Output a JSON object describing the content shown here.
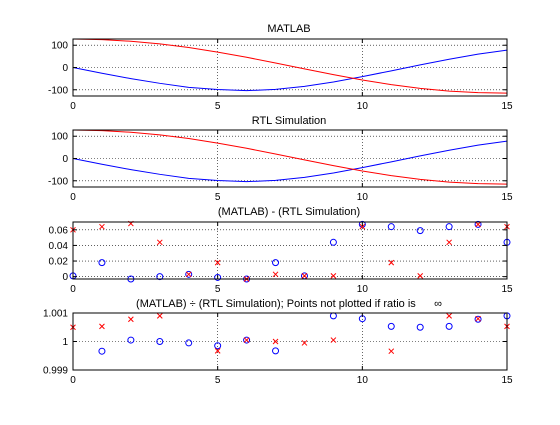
{
  "figure": {
    "background": "#ffffff",
    "axis_color": "#000000",
    "grid_color": "#000000"
  },
  "chart_data": [
    {
      "type": "line",
      "title": "MATLAB",
      "xlabel": "",
      "ylabel": "",
      "xlim": [
        0,
        15
      ],
      "ylim": [
        -128,
        128
      ],
      "xticks": [
        0,
        5,
        10,
        15
      ],
      "xtick_labels": [
        "0",
        "5",
        "10",
        "15"
      ],
      "yticks": [
        -100,
        0,
        100
      ],
      "ytick_labels": [
        "-100",
        "0",
        "100"
      ],
      "grid": true,
      "grid_style": "dotted",
      "legend": "none",
      "series": [
        {
          "color": "#0000ff",
          "x": [
            0,
            1,
            2,
            3,
            4,
            5,
            6,
            7,
            8,
            9,
            10,
            11,
            12,
            13,
            14,
            15
          ],
          "y": [
            0,
            -26,
            -50,
            -71,
            -89,
            -99,
            -104,
            -98,
            -85,
            -65,
            -41,
            -15,
            12,
            37,
            60,
            78
          ]
        },
        {
          "color": "#ff0000",
          "x": [
            0,
            1,
            2,
            3,
            4,
            5,
            6,
            7,
            8,
            9,
            10,
            11,
            12,
            13,
            14,
            15
          ],
          "y": [
            128,
            125,
            118,
            106,
            90,
            69,
            46,
            20,
            -6,
            -32,
            -56,
            -77,
            -94,
            -106,
            -113,
            -115
          ]
        }
      ]
    },
    {
      "type": "line",
      "title": "RTL Simulation",
      "xlabel": "",
      "ylabel": "",
      "xlim": [
        0,
        15
      ],
      "ylim": [
        -128,
        128
      ],
      "xticks": [
        0,
        5,
        10,
        15
      ],
      "xtick_labels": [
        "0",
        "5",
        "10",
        "15"
      ],
      "yticks": [
        -100,
        0,
        100
      ],
      "ytick_labels": [
        "-100",
        "0",
        "100"
      ],
      "grid": true,
      "grid_style": "dotted",
      "legend": "none",
      "series": [
        {
          "color": "#0000ff",
          "x": [
            0,
            1,
            2,
            3,
            4,
            5,
            6,
            7,
            8,
            9,
            10,
            11,
            12,
            13,
            14,
            15
          ],
          "y": [
            0,
            -26,
            -50,
            -71,
            -89,
            -99,
            -104,
            -98,
            -85,
            -65,
            -41,
            -15,
            12,
            37,
            60,
            78
          ]
        },
        {
          "color": "#ff0000",
          "x": [
            0,
            1,
            2,
            3,
            4,
            5,
            6,
            7,
            8,
            9,
            10,
            11,
            12,
            13,
            14,
            15
          ],
          "y": [
            128,
            125,
            118,
            106,
            90,
            69,
            46,
            20,
            -6,
            -32,
            -56,
            -77,
            -94,
            -106,
            -113,
            -115
          ]
        }
      ]
    },
    {
      "type": "scatter",
      "title": "(MATLAB) - (RTL Simulation)",
      "xlabel": "",
      "ylabel": "",
      "xlim": [
        0,
        15
      ],
      "ylim": [
        -0.003,
        0.07
      ],
      "xticks": [
        0,
        5,
        10,
        15
      ],
      "xtick_labels": [
        "0",
        "5",
        "10",
        "15"
      ],
      "yticks": [
        0,
        0.02,
        0.04,
        0.06
      ],
      "ytick_labels": [
        "0",
        "0.02",
        "0.04",
        "0.06"
      ],
      "grid": true,
      "grid_style": "dotted",
      "legend": "none",
      "series": [
        {
          "color": "#0000ff",
          "marker": "o",
          "x": [
            0,
            1,
            2,
            3,
            4,
            5,
            6,
            7,
            8,
            9,
            10,
            11,
            12,
            13,
            14,
            15
          ],
          "y": [
            0.001,
            0.018,
            -0.003,
            0.0,
            0.003,
            -0.001,
            -0.003,
            0.018,
            0.001,
            0.044,
            0.067,
            0.064,
            0.059,
            0.064,
            0.067,
            0.044
          ]
        },
        {
          "color": "#ff0000",
          "marker": "x",
          "x": [
            0,
            1,
            2,
            3,
            4,
            5,
            6,
            7,
            8,
            9,
            10,
            11,
            12,
            13,
            14,
            15
          ],
          "y": [
            0.06,
            0.064,
            0.068,
            0.044,
            0.003,
            0.018,
            -0.003,
            0.003,
            0.001,
            0.001,
            0.064,
            0.018,
            0.001,
            0.044,
            0.067,
            0.064
          ]
        }
      ]
    },
    {
      "type": "scatter",
      "title": "(MATLAB) ÷ (RTL Simulation); Points not plotted if ratio is      ∞",
      "xlabel": "",
      "ylabel": "",
      "xlim": [
        0,
        15
      ],
      "ylim": [
        0.999,
        1.001
      ],
      "xticks": [
        0,
        5,
        10,
        15
      ],
      "xtick_labels": [
        "0",
        "5",
        "10",
        "15"
      ],
      "yticks": [
        0.999,
        1,
        1.001
      ],
      "ytick_labels": [
        "0.999",
        "1",
        "1.001"
      ],
      "grid": true,
      "grid_style": "dotted",
      "legend": "none",
      "series": [
        {
          "color": "#0000ff",
          "marker": "o",
          "x": [
            1,
            2,
            3,
            4,
            5,
            6,
            7,
            9,
            10,
            11,
            12,
            13,
            14,
            15
          ],
          "y": [
            0.99966,
            1.00005,
            1.0,
            0.99995,
            0.99985,
            1.00005,
            0.99967,
            1.0009,
            1.0008,
            1.00053,
            1.0005,
            1.00053,
            1.00078,
            1.0009
          ]
        },
        {
          "color": "#ff0000",
          "marker": "x",
          "x": [
            0,
            1,
            2,
            3,
            5,
            6,
            7,
            8,
            9,
            11,
            13,
            14,
            15
          ],
          "y": [
            1.0005,
            1.00053,
            1.00078,
            1.0009,
            0.99967,
            1.00005,
            1.0,
            0.99995,
            1.00005,
            0.99966,
            1.0009,
            1.0008,
            1.00053
          ]
        }
      ]
    }
  ]
}
